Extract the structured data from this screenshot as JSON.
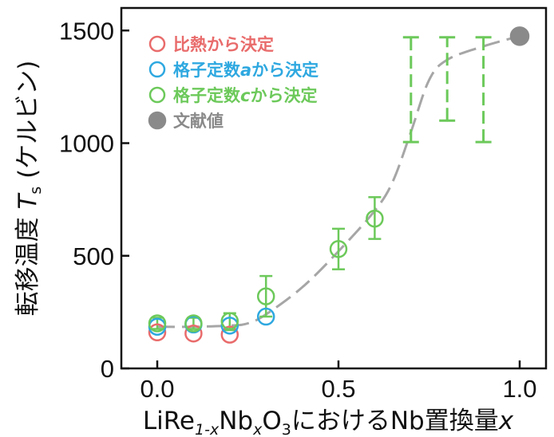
{
  "chart_data": {
    "type": "scatter",
    "xlabel_prefix": "LiRe",
    "xlabel_sub1": "1-x",
    "xlabel_mid": "Nb",
    "xlabel_sub2": "x",
    "xlabel_mid2": "O",
    "xlabel_sub3": "3",
    "xlabel_suffix": "におけるNb置換量",
    "xlabel_var": "x",
    "ylabel_prefix": "転移温度 ",
    "ylabel_var": "T",
    "ylabel_sub": "s",
    "ylabel_suffix": " (ケルビン)",
    "xlim": [
      -0.1,
      1.1
    ],
    "ylim": [
      0,
      1600
    ],
    "x_ticks": [
      0.0,
      0.5,
      1.0
    ],
    "x_tick_labels": [
      "0.0",
      "0.5",
      "1.0"
    ],
    "y_ticks": [
      0,
      500,
      1000,
      1500
    ],
    "y_tick_labels": [
      "0",
      "500",
      "1000",
      "1500"
    ],
    "grid": false,
    "legend_position": "top-left",
    "series": [
      {
        "name": "比熱から決定",
        "color": "#e96b6b",
        "marker": "open-circle",
        "points": [
          {
            "x": 0.0,
            "y": 160
          },
          {
            "x": 0.1,
            "y": 155
          },
          {
            "x": 0.2,
            "y": 150
          }
        ]
      },
      {
        "name": "格子定数aから決定",
        "name_prefix": "格子定数",
        "name_var": "a",
        "name_suffix": "から決定",
        "color": "#2ea8e0",
        "marker": "open-circle",
        "points": [
          {
            "x": 0.0,
            "y": 185
          },
          {
            "x": 0.1,
            "y": 195
          },
          {
            "x": 0.2,
            "y": 190
          },
          {
            "x": 0.3,
            "y": 230
          }
        ]
      },
      {
        "name": "格子定数cから決定",
        "name_prefix": "格子定数",
        "name_var": "c",
        "name_suffix": "から決定",
        "color": "#6cc95a",
        "marker": "open-circle",
        "points": [
          {
            "x": 0.0,
            "y": 200,
            "err_lo": 175,
            "err_hi": 225
          },
          {
            "x": 0.1,
            "y": 200,
            "err_lo": 175,
            "err_hi": 225
          },
          {
            "x": 0.2,
            "y": 210,
            "err_lo": 170,
            "err_hi": 245
          },
          {
            "x": 0.3,
            "y": 320,
            "err_lo": 230,
            "err_hi": 410
          },
          {
            "x": 0.5,
            "y": 530,
            "err_lo": 440,
            "err_hi": 620
          },
          {
            "x": 0.6,
            "y": 665,
            "err_lo": 575,
            "err_hi": 760
          }
        ],
        "ranges": [
          {
            "x": 0.7,
            "lo": 1005,
            "hi": 1470
          },
          {
            "x": 0.8,
            "lo": 1100,
            "hi": 1470
          },
          {
            "x": 0.9,
            "lo": 1005,
            "hi": 1470
          }
        ]
      },
      {
        "name": "文献値",
        "color": "#8a8a8a",
        "marker": "filled-circle",
        "points": [
          {
            "x": 1.0,
            "y": 1475
          }
        ]
      }
    ],
    "trend_line": {
      "style": "dashed",
      "color": "#a6a6a6",
      "points": [
        {
          "x": 0.0,
          "y": 185
        },
        {
          "x": 0.1,
          "y": 185
        },
        {
          "x": 0.2,
          "y": 190
        },
        {
          "x": 0.25,
          "y": 200
        },
        {
          "x": 0.3,
          "y": 240
        },
        {
          "x": 0.4,
          "y": 360
        },
        {
          "x": 0.5,
          "y": 520
        },
        {
          "x": 0.6,
          "y": 700
        },
        {
          "x": 0.65,
          "y": 830
        },
        {
          "x": 0.7,
          "y": 1050
        },
        {
          "x": 0.75,
          "y": 1280
        },
        {
          "x": 0.8,
          "y": 1370
        },
        {
          "x": 0.9,
          "y": 1430
        },
        {
          "x": 1.0,
          "y": 1475
        }
      ]
    }
  }
}
